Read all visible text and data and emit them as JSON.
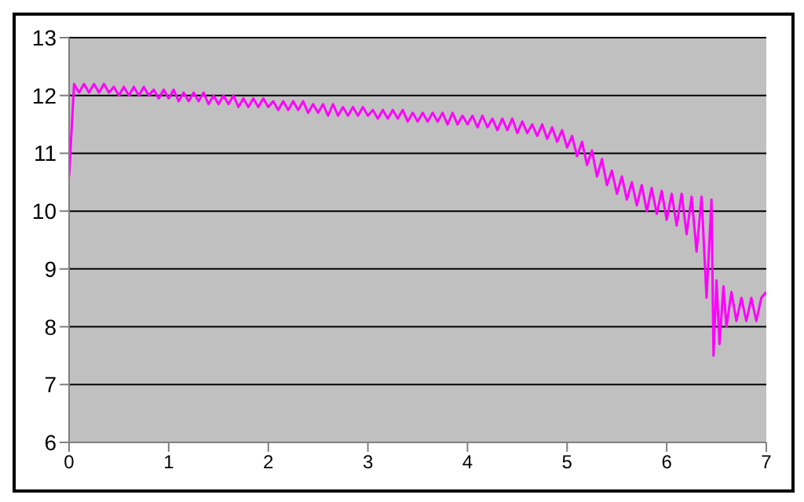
{
  "chart_data": {
    "type": "line",
    "x": [
      0,
      0.05,
      0.1,
      0.15,
      0.2,
      0.25,
      0.3,
      0.35,
      0.4,
      0.45,
      0.5,
      0.55,
      0.6,
      0.65,
      0.7,
      0.75,
      0.8,
      0.85,
      0.9,
      0.95,
      1.0,
      1.05,
      1.1,
      1.15,
      1.2,
      1.25,
      1.3,
      1.35,
      1.4,
      1.45,
      1.5,
      1.55,
      1.6,
      1.65,
      1.7,
      1.75,
      1.8,
      1.85,
      1.9,
      1.95,
      2.0,
      2.05,
      2.1,
      2.15,
      2.2,
      2.25,
      2.3,
      2.35,
      2.4,
      2.45,
      2.5,
      2.55,
      2.6,
      2.65,
      2.7,
      2.75,
      2.8,
      2.85,
      2.9,
      2.95,
      3.0,
      3.05,
      3.1,
      3.15,
      3.2,
      3.25,
      3.3,
      3.35,
      3.4,
      3.45,
      3.5,
      3.55,
      3.6,
      3.65,
      3.7,
      3.75,
      3.8,
      3.85,
      3.9,
      3.95,
      4.0,
      4.05,
      4.1,
      4.15,
      4.2,
      4.25,
      4.3,
      4.35,
      4.4,
      4.45,
      4.5,
      4.55,
      4.6,
      4.65,
      4.7,
      4.75,
      4.8,
      4.85,
      4.9,
      4.95,
      5.0,
      5.05,
      5.1,
      5.15,
      5.2,
      5.25,
      5.3,
      5.35,
      5.4,
      5.45,
      5.5,
      5.55,
      5.6,
      5.65,
      5.7,
      5.75,
      5.8,
      5.85,
      5.9,
      5.95,
      6.0,
      6.05,
      6.1,
      6.15,
      6.2,
      6.25,
      6.3,
      6.35,
      6.4,
      6.45,
      6.47,
      6.5,
      6.53,
      6.57,
      6.6,
      6.65,
      6.7,
      6.75,
      6.8,
      6.85,
      6.9,
      6.95,
      7.0
    ],
    "series": [
      {
        "color": "#ff00ff",
        "values": [
          10.6,
          12.2,
          12.05,
          12.2,
          12.05,
          12.2,
          12.05,
          12.2,
          12.05,
          12.15,
          12.0,
          12.15,
          12.0,
          12.15,
          12.0,
          12.15,
          12.0,
          12.1,
          11.95,
          12.1,
          11.95,
          12.1,
          11.9,
          12.05,
          11.9,
          12.05,
          11.9,
          12.05,
          11.85,
          12.0,
          11.85,
          12.0,
          11.85,
          12.0,
          11.8,
          11.95,
          11.8,
          11.95,
          11.8,
          11.95,
          11.8,
          11.9,
          11.75,
          11.9,
          11.75,
          11.9,
          11.75,
          11.9,
          11.7,
          11.85,
          11.7,
          11.85,
          11.65,
          11.85,
          11.65,
          11.8,
          11.65,
          11.8,
          11.65,
          11.8,
          11.65,
          11.75,
          11.6,
          11.75,
          11.6,
          11.75,
          11.6,
          11.75,
          11.55,
          11.7,
          11.55,
          11.7,
          11.55,
          11.7,
          11.55,
          11.7,
          11.5,
          11.7,
          11.5,
          11.65,
          11.5,
          11.65,
          11.45,
          11.65,
          11.45,
          11.6,
          11.4,
          11.6,
          11.4,
          11.6,
          11.35,
          11.55,
          11.35,
          11.5,
          11.3,
          11.5,
          11.25,
          11.45,
          11.2,
          11.4,
          11.1,
          11.3,
          10.95,
          11.2,
          10.8,
          11.05,
          10.6,
          10.9,
          10.45,
          10.7,
          10.3,
          10.6,
          10.2,
          10.5,
          10.1,
          10.45,
          10.0,
          10.4,
          9.95,
          10.35,
          9.85,
          10.3,
          9.75,
          10.3,
          9.6,
          10.25,
          9.3,
          10.25,
          8.5,
          10.2,
          7.5,
          8.8,
          7.7,
          8.7,
          8.0,
          8.6,
          8.1,
          8.5,
          8.1,
          8.5,
          8.1,
          8.5,
          8.6
        ]
      }
    ],
    "xlim": [
      0,
      7
    ],
    "xticks": [
      0,
      1,
      2,
      3,
      4,
      5,
      6,
      7
    ],
    "ylim": [
      6,
      13
    ],
    "yticks": [
      6,
      7,
      8,
      9,
      10,
      11,
      12,
      13
    ],
    "grid": "y",
    "legend": false,
    "marker": "none",
    "line_style": "solid"
  }
}
